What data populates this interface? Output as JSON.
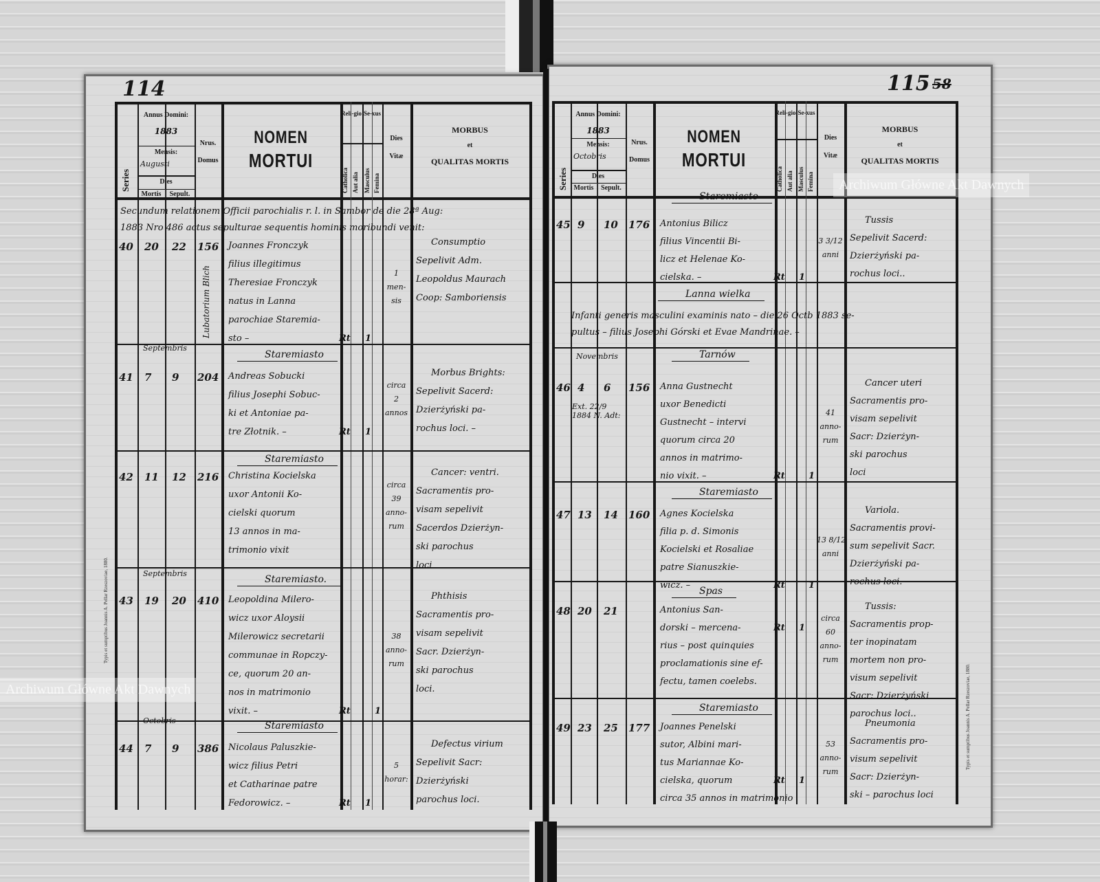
{
  "document": {
    "watermark": "Archiwum Główne Akt Dawnych",
    "header_labels": {
      "series": "Series",
      "annus_domini": "Annus Domini:",
      "mensis": "Mensis:",
      "dies": "Dies",
      "mortis": "Mortis",
      "sepult": "Sepult.",
      "nrus": "Nrus.",
      "domus": "Domus",
      "nomen": "NOMEN",
      "mortui": "MORTUI",
      "religio": "Reli-gio",
      "sexus": "Se-xus",
      "catholica": "Catholica",
      "aut_alia": "Aut alia",
      "masculus": "Masculus",
      "femina": "Femina",
      "dies_vitae_1": "Dies",
      "dies_vitae_2": "Vitæ",
      "morbus": "MORBUS",
      "et": "et",
      "qualitas_mortis": "QUALITAS MORTIS"
    },
    "printer_imprint": "Typis et sumptibus Joannis A. Pellar Rzeszoviae, 1880."
  },
  "left_page": {
    "page_number": "114",
    "year": "1883",
    "month": "Augusti",
    "intro_note": [
      "Secundum relationem Officii parochialis r. l. in Sambor de die 28ª Aug:",
      "1883 Nro 486 actus sepulturae sequentis hominis moribundi venit:"
    ],
    "entries": [
      {
        "series": "40",
        "mortis": "20",
        "sepult": "22",
        "domus": "156",
        "domus_note": "Lubatorium Blich",
        "month": "",
        "place": "",
        "name": [
          "Joannes Fronczyk",
          "filius illegitimus",
          "Theresiae Fronczyk",
          "natus in Lanna",
          "parochiae Staremia-",
          "sto –"
        ],
        "religio": "Rt",
        "sex": "masculus",
        "sex_mark": "1",
        "vitae": [
          "1",
          "men-",
          "sis"
        ],
        "morbus": [
          "Consumptio",
          "Sepelivit Adm.",
          "Leopoldus Maurach",
          "Coop: Samboriensis"
        ]
      },
      {
        "series": "41",
        "mortis": "7",
        "sepult": "9",
        "domus": "204",
        "month": "Septembris",
        "place": "Staremiasto",
        "name": [
          "Andreas Sobucki",
          "filius Josephi Sobuc-",
          "ki et Antoniae pa-",
          "tre Złotnik. –"
        ],
        "religio": "Rt",
        "sex": "masculus",
        "sex_mark": "1",
        "vitae": [
          "circa",
          "2",
          "annos"
        ],
        "morbus": [
          "Morbus Brights:",
          "Sepelivit Sacerd:",
          "Dzierżyński pa-",
          "rochus loci. –"
        ]
      },
      {
        "series": "42",
        "mortis": "11",
        "sepult": "12",
        "domus": "216",
        "month": "",
        "place": "Staremiasto",
        "name": [
          "Christina Kocielska",
          "uxor Antonii Ko-",
          "cielski quorum",
          "13 annos in ma-",
          "trimonio vixit"
        ],
        "religio": "",
        "sex": "femina",
        "sex_mark": "",
        "vitae": [
          "circa",
          "39",
          "anno-",
          "rum"
        ],
        "morbus": [
          "Cancer: ventri.",
          "Sacramentis pro-",
          "visam sepelivit",
          "Sacerdos Dzierżyn-",
          "ski parochus",
          "loci"
        ]
      },
      {
        "series": "43",
        "mortis": "19",
        "sepult": "20",
        "domus": "410",
        "month": "Septembris",
        "place": "Staremiasto.",
        "name": [
          "Leopoldina Milero-",
          "wicz uxor Aloysii",
          "Milerowicz secretarii",
          "communae in Ropczy-",
          "ce, quorum 20 an-",
          "nos in matrimonio",
          "vixit. –"
        ],
        "religio": "Rt",
        "sex": "femina",
        "sex_mark": "1",
        "vitae": [
          "38",
          "anno-",
          "rum"
        ],
        "morbus": [
          "Phthisis",
          "Sacramentis pro-",
          "visam sepelivit",
          "Sacr. Dzierżyn-",
          "ski parochus",
          "loci."
        ]
      },
      {
        "series": "44",
        "mortis": "7",
        "sepult": "9",
        "domus": "386",
        "month": "Octobris",
        "place": "Staremiasto",
        "name": [
          "Nicolaus Paluszkie-",
          "wicz filius Petri",
          "et Catharinae patre",
          "Fedorowicz. –"
        ],
        "religio": "Rt",
        "sex": "masculus",
        "sex_mark": "1",
        "vitae": [
          "5",
          "horar:"
        ],
        "morbus": [
          "Defectus virium",
          "Sepelivit Sacr:",
          "Dzierżyński",
          "parochus loci."
        ]
      }
    ]
  },
  "right_page": {
    "page_number": "115",
    "old_page_number": "58",
    "year": "1883",
    "month": "Octobris",
    "village_note": {
      "place": "Lanna wielka",
      "lines": [
        "Infanti generis masculini examinis nato – die 26 Octb 1883 se-",
        "pultus – filius Josephi Górski et Evae Mandrinae. –"
      ]
    },
    "entries": [
      {
        "series": "45",
        "mortis": "9",
        "sepult": "10",
        "domus": "176",
        "month": "",
        "place": "Staremiasto",
        "name": [
          "Antonius Bilicz",
          "filius Vincentii Bi-",
          "licz et Helenae Ko-",
          "cielska. –"
        ],
        "religio": "Rt",
        "sex": "masculus",
        "sex_mark": "1",
        "vitae": [
          "3 3/12",
          "anni"
        ],
        "morbus": [
          "Tussis",
          "Sepelivit Sacerd:",
          "Dzierżyński pa-",
          "rochus loci.."
        ]
      },
      {
        "series": "46",
        "mortis": "4",
        "sepult": "6",
        "domus": "156",
        "mortis_note": "Ext. 22/9 1884 N. Adt:",
        "month": "Novembris",
        "place": "Tarnów",
        "name": [
          "Anna Gustnecht",
          "uxor Benedicti",
          "Gustnecht – intervi",
          "quorum circa 20",
          "annos in matrimo-",
          "nio vixit. –"
        ],
        "religio": "Rt",
        "sex": "femina",
        "sex_mark": "1",
        "vitae": [
          "41",
          "anno-",
          "rum"
        ],
        "morbus": [
          "Cancer uteri",
          "Sacramentis pro-",
          "visam sepelivit",
          "Sacr: Dzierżyn-",
          "ski parochus",
          "loci"
        ]
      },
      {
        "series": "47",
        "mortis": "13",
        "sepult": "14",
        "domus": "160",
        "month": "",
        "place": "Staremiasto",
        "name": [
          "Agnes Kocielska",
          "filia p. d. Simonis",
          "Kocielski et Rosaliae",
          "patre Sianuszkie-",
          "wicz. –"
        ],
        "religio": "Rt",
        "sex": "femina",
        "sex_mark": "1",
        "vitae": [
          "13 8/12",
          "anni"
        ],
        "morbus": [
          "Variola.",
          "Sacramentis provi-",
          "sum sepelivit Sacr.",
          "Dzierżyński pa-",
          "rochus loci. –"
        ]
      },
      {
        "series": "48",
        "mortis": "20",
        "sepult": "21",
        "domus": "",
        "month": "",
        "place": "Spas",
        "name": [
          "Antonius San-",
          "dorski – mercena-",
          "rius – post quinquies",
          "proclamationis sine ef-",
          "fectu, tamen coelebs."
        ],
        "religio": "Rt",
        "sex": "masculus",
        "sex_mark": "1",
        "vitae": [
          "circa",
          "60",
          "anno-",
          "rum"
        ],
        "morbus": [
          "Tussis:",
          "Sacramentis prop-",
          "ter inopinatam",
          "mortem non pro-",
          "visum sepelivit",
          "Sacr: Dzierżyński",
          "parochus loci.."
        ]
      },
      {
        "series": "49",
        "mortis": "23",
        "sepult": "25",
        "domus": "177",
        "month": "",
        "place": "Staremiasto",
        "name": [
          "Joannes Penelski",
          "sutor, Albini mari-",
          "tus Mariannae Ko-",
          "cielska, quorum",
          "circa 35 annos in matrimonio"
        ],
        "religio": "Rt",
        "sex": "masculus",
        "sex_mark": "1",
        "vitae": [
          "53",
          "anno-",
          "rum"
        ],
        "morbus": [
          "Pneumonia",
          "Sacramentis pro-",
          "visum sepelivit",
          "Sacr: Dzierżyn-",
          "ski – parochus loci"
        ]
      }
    ]
  }
}
